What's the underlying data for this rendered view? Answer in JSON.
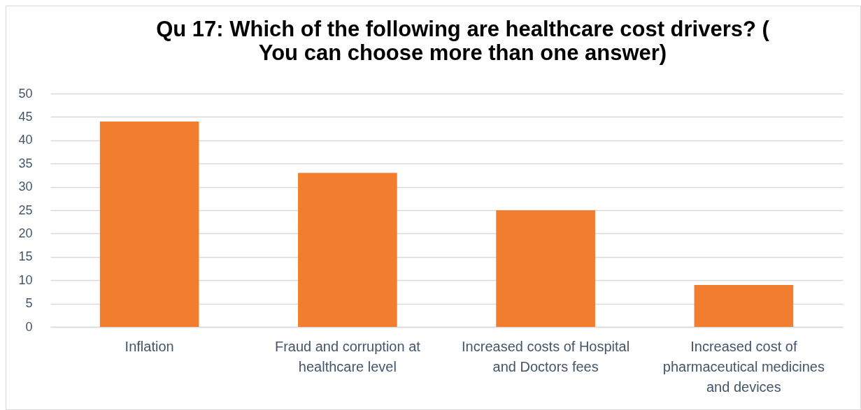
{
  "chart_data": {
    "type": "bar",
    "title": "Qu 17: Which of the following are healthcare cost drivers? ( You can choose more than one answer)",
    "categories": [
      "Inflation",
      "Fraud and corruption at healthcare level",
      "Increased costs of Hospital and Doctors fees",
      "Increased cost of pharmaceutical medicines and devices"
    ],
    "values": [
      44,
      33,
      25,
      9
    ],
    "color": "#f17d2e",
    "ylim": [
      0,
      50
    ],
    "yticks": [
      0,
      5,
      10,
      15,
      20,
      25,
      30,
      35,
      40,
      45,
      50
    ],
    "grid": "y"
  }
}
